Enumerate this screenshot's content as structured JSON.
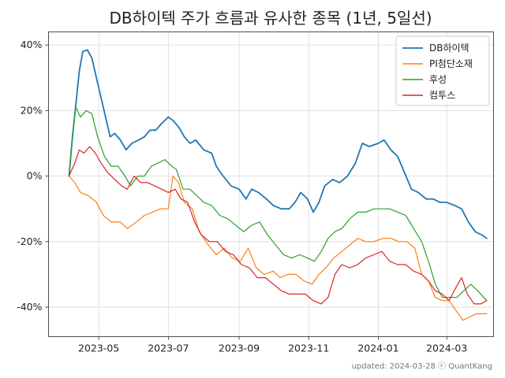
{
  "chart_data": {
    "type": "line",
    "title": "DB하이텍 주가 흐름과 유사한 종목 (1년, 5일선)",
    "xlabel": "",
    "ylabel": "",
    "x_ticks": [
      "2023-05",
      "2023-07",
      "2023-09",
      "2023-11",
      "2024-01",
      "2024-03"
    ],
    "x_range": [
      "2023-03-18",
      "2024-04-11"
    ],
    "y_ticks": [
      "40%",
      "20%",
      "0%",
      "-20%",
      "-40%"
    ],
    "ylim": [
      -49,
      44
    ],
    "grid": true,
    "legend_position": "top-right",
    "footer": "updated: 2024-03-28 ⓒ QuantKang",
    "series": [
      {
        "name": "DB하이텍",
        "color": "#1f77b4",
        "points": [
          [
            "2023-04-05",
            0
          ],
          [
            "2023-04-08",
            12
          ],
          [
            "2023-04-11",
            22
          ],
          [
            "2023-04-14",
            32
          ],
          [
            "2023-04-17",
            38
          ],
          [
            "2023-04-21",
            38.5
          ],
          [
            "2023-04-25",
            36
          ],
          [
            "2023-04-29",
            30
          ],
          [
            "2023-05-03",
            24
          ],
          [
            "2023-05-07",
            18
          ],
          [
            "2023-05-11",
            12
          ],
          [
            "2023-05-15",
            13
          ],
          [
            "2023-05-20",
            11
          ],
          [
            "2023-05-25",
            8
          ],
          [
            "2023-05-30",
            10
          ],
          [
            "2023-06-05",
            11
          ],
          [
            "2023-06-10",
            12
          ],
          [
            "2023-06-15",
            14
          ],
          [
            "2023-06-20",
            14
          ],
          [
            "2023-06-25",
            16
          ],
          [
            "2023-07-01",
            18
          ],
          [
            "2023-07-05",
            17
          ],
          [
            "2023-07-10",
            15
          ],
          [
            "2023-07-15",
            12
          ],
          [
            "2023-07-20",
            10
          ],
          [
            "2023-07-25",
            11
          ],
          [
            "2023-08-01",
            8
          ],
          [
            "2023-08-08",
            7
          ],
          [
            "2023-08-12",
            3
          ],
          [
            "2023-08-18",
            0
          ],
          [
            "2023-08-25",
            -3
          ],
          [
            "2023-09-01",
            -4
          ],
          [
            "2023-09-07",
            -7
          ],
          [
            "2023-09-12",
            -4
          ],
          [
            "2023-09-18",
            -5
          ],
          [
            "2023-09-25",
            -7
          ],
          [
            "2023-10-01",
            -9
          ],
          [
            "2023-10-08",
            -10
          ],
          [
            "2023-10-15",
            -10
          ],
          [
            "2023-10-20",
            -8
          ],
          [
            "2023-10-25",
            -5
          ],
          [
            "2023-10-31",
            -7
          ],
          [
            "2023-11-05",
            -11
          ],
          [
            "2023-11-10",
            -8
          ],
          [
            "2023-11-15",
            -3
          ],
          [
            "2023-11-22",
            -1
          ],
          [
            "2023-11-28",
            -2
          ],
          [
            "2023-12-05",
            0
          ],
          [
            "2023-12-12",
            4
          ],
          [
            "2023-12-18",
            10
          ],
          [
            "2023-12-24",
            9
          ],
          [
            "2024-01-01",
            10
          ],
          [
            "2024-01-06",
            11
          ],
          [
            "2024-01-12",
            8
          ],
          [
            "2024-01-18",
            6
          ],
          [
            "2024-01-24",
            1
          ],
          [
            "2024-01-30",
            -4
          ],
          [
            "2024-02-05",
            -5
          ],
          [
            "2024-02-12",
            -7
          ],
          [
            "2024-02-18",
            -7
          ],
          [
            "2024-02-24",
            -8
          ],
          [
            "2024-03-01",
            -8
          ],
          [
            "2024-03-08",
            -9
          ],
          [
            "2024-03-14",
            -10
          ],
          [
            "2024-03-20",
            -14
          ],
          [
            "2024-03-26",
            -17
          ],
          [
            "2024-04-01",
            -18
          ],
          [
            "2024-04-05",
            -19
          ]
        ]
      },
      {
        "name": "PI첨단소재",
        "color": "#ff7f0e",
        "points": [
          [
            "2023-04-05",
            0
          ],
          [
            "2023-04-10",
            -2
          ],
          [
            "2023-04-15",
            -5
          ],
          [
            "2023-04-22",
            -6
          ],
          [
            "2023-04-29",
            -8
          ],
          [
            "2023-05-05",
            -12
          ],
          [
            "2023-05-12",
            -14
          ],
          [
            "2023-05-20",
            -14
          ],
          [
            "2023-05-26",
            -16
          ],
          [
            "2023-06-03",
            -14
          ],
          [
            "2023-06-10",
            -12
          ],
          [
            "2023-06-17",
            -11
          ],
          [
            "2023-06-24",
            -10
          ],
          [
            "2023-07-01",
            -10
          ],
          [
            "2023-07-05",
            0
          ],
          [
            "2023-07-10",
            -2
          ],
          [
            "2023-07-15",
            -8
          ],
          [
            "2023-07-22",
            -10
          ],
          [
            "2023-07-28",
            -17
          ],
          [
            "2023-08-05",
            -21
          ],
          [
            "2023-08-12",
            -24
          ],
          [
            "2023-08-19",
            -22
          ],
          [
            "2023-08-26",
            -25
          ],
          [
            "2023-09-02",
            -26
          ],
          [
            "2023-09-09",
            -22
          ],
          [
            "2023-09-16",
            -28
          ],
          [
            "2023-09-23",
            -30
          ],
          [
            "2023-10-01",
            -29
          ],
          [
            "2023-10-07",
            -31
          ],
          [
            "2023-10-14",
            -30
          ],
          [
            "2023-10-21",
            -30
          ],
          [
            "2023-10-28",
            -32
          ],
          [
            "2023-11-04",
            -33
          ],
          [
            "2023-11-10",
            -30
          ],
          [
            "2023-11-16",
            -28
          ],
          [
            "2023-11-23",
            -25
          ],
          [
            "2023-11-30",
            -23
          ],
          [
            "2023-12-07",
            -21
          ],
          [
            "2023-12-14",
            -19
          ],
          [
            "2023-12-21",
            -20
          ],
          [
            "2023-12-28",
            -20
          ],
          [
            "2024-01-05",
            -19
          ],
          [
            "2024-01-12",
            -19
          ],
          [
            "2024-01-19",
            -20
          ],
          [
            "2024-01-26",
            -20
          ],
          [
            "2024-02-02",
            -22
          ],
          [
            "2024-02-08",
            -30
          ],
          [
            "2024-02-14",
            -32
          ],
          [
            "2024-02-20",
            -37
          ],
          [
            "2024-02-26",
            -38
          ],
          [
            "2024-03-03",
            -38
          ],
          [
            "2024-03-09",
            -41
          ],
          [
            "2024-03-15",
            -44
          ],
          [
            "2024-03-21",
            -43
          ],
          [
            "2024-03-27",
            -42
          ],
          [
            "2024-04-05",
            -42
          ]
        ]
      },
      {
        "name": "후성",
        "color": "#2ca02c",
        "points": [
          [
            "2023-04-05",
            0
          ],
          [
            "2023-04-08",
            13
          ],
          [
            "2023-04-11",
            21
          ],
          [
            "2023-04-15",
            18
          ],
          [
            "2023-04-20",
            20
          ],
          [
            "2023-04-25",
            19
          ],
          [
            "2023-04-30",
            12
          ],
          [
            "2023-05-06",
            6
          ],
          [
            "2023-05-12",
            3
          ],
          [
            "2023-05-18",
            3
          ],
          [
            "2023-05-24",
            0
          ],
          [
            "2023-05-29",
            -3
          ],
          [
            "2023-06-04",
            0
          ],
          [
            "2023-06-10",
            0
          ],
          [
            "2023-06-16",
            3
          ],
          [
            "2023-06-22",
            4
          ],
          [
            "2023-06-28",
            5
          ],
          [
            "2023-07-04",
            3
          ],
          [
            "2023-07-08",
            2
          ],
          [
            "2023-07-14",
            -4
          ],
          [
            "2023-07-20",
            -4
          ],
          [
            "2023-07-26",
            -6
          ],
          [
            "2023-08-01",
            -8
          ],
          [
            "2023-08-08",
            -9
          ],
          [
            "2023-08-15",
            -12
          ],
          [
            "2023-08-22",
            -13
          ],
          [
            "2023-08-29",
            -15
          ],
          [
            "2023-09-05",
            -17
          ],
          [
            "2023-09-12",
            -15
          ],
          [
            "2023-09-19",
            -14
          ],
          [
            "2023-09-26",
            -18
          ],
          [
            "2023-10-03",
            -21
          ],
          [
            "2023-10-10",
            -24
          ],
          [
            "2023-10-17",
            -25
          ],
          [
            "2023-10-24",
            -24
          ],
          [
            "2023-10-31",
            -25
          ],
          [
            "2023-11-06",
            -26
          ],
          [
            "2023-11-12",
            -23
          ],
          [
            "2023-11-18",
            -19
          ],
          [
            "2023-11-24",
            -17
          ],
          [
            "2023-11-30",
            -16
          ],
          [
            "2023-12-07",
            -13
          ],
          [
            "2023-12-14",
            -11
          ],
          [
            "2023-12-21",
            -11
          ],
          [
            "2023-12-28",
            -10
          ],
          [
            "2024-01-04",
            -10
          ],
          [
            "2024-01-11",
            -10
          ],
          [
            "2024-01-18",
            -11
          ],
          [
            "2024-01-25",
            -12
          ],
          [
            "2024-02-01",
            -16
          ],
          [
            "2024-02-08",
            -20
          ],
          [
            "2024-02-14",
            -26
          ],
          [
            "2024-02-20",
            -33
          ],
          [
            "2024-02-26",
            -37
          ],
          [
            "2024-03-03",
            -37
          ],
          [
            "2024-03-10",
            -37
          ],
          [
            "2024-03-16",
            -35
          ],
          [
            "2024-03-22",
            -33
          ],
          [
            "2024-03-28",
            -35
          ],
          [
            "2024-04-05",
            -38
          ]
        ]
      },
      {
        "name": "컴투스",
        "color": "#d62728",
        "points": [
          [
            "2023-04-05",
            0
          ],
          [
            "2023-04-10",
            4
          ],
          [
            "2023-04-14",
            8
          ],
          [
            "2023-04-18",
            7
          ],
          [
            "2023-04-23",
            9
          ],
          [
            "2023-04-28",
            7
          ],
          [
            "2023-05-03",
            4
          ],
          [
            "2023-05-09",
            1
          ],
          [
            "2023-05-15",
            -1
          ],
          [
            "2023-05-21",
            -3
          ],
          [
            "2023-05-26",
            -4
          ],
          [
            "2023-06-01",
            0
          ],
          [
            "2023-06-07",
            -2
          ],
          [
            "2023-06-13",
            -2
          ],
          [
            "2023-06-19",
            -3
          ],
          [
            "2023-06-25",
            -4
          ],
          [
            "2023-07-01",
            -5
          ],
          [
            "2023-07-07",
            -4
          ],
          [
            "2023-07-12",
            -7
          ],
          [
            "2023-07-18",
            -8
          ],
          [
            "2023-07-24",
            -14
          ],
          [
            "2023-07-30",
            -18
          ],
          [
            "2023-08-06",
            -20
          ],
          [
            "2023-08-13",
            -20
          ],
          [
            "2023-08-20",
            -23
          ],
          [
            "2023-08-27",
            -24
          ],
          [
            "2023-09-03",
            -27
          ],
          [
            "2023-09-10",
            -28
          ],
          [
            "2023-09-17",
            -31
          ],
          [
            "2023-09-24",
            -31
          ],
          [
            "2023-10-01",
            -33
          ],
          [
            "2023-10-08",
            -35
          ],
          [
            "2023-10-15",
            -36
          ],
          [
            "2023-10-22",
            -36
          ],
          [
            "2023-10-29",
            -36
          ],
          [
            "2023-11-05",
            -38
          ],
          [
            "2023-11-12",
            -39
          ],
          [
            "2023-11-18",
            -37
          ],
          [
            "2023-11-24",
            -30
          ],
          [
            "2023-11-30",
            -27
          ],
          [
            "2023-12-07",
            -28
          ],
          [
            "2023-12-14",
            -27
          ],
          [
            "2023-12-21",
            -25
          ],
          [
            "2023-12-28",
            -24
          ],
          [
            "2024-01-04",
            -23
          ],
          [
            "2024-01-11",
            -26
          ],
          [
            "2024-01-18",
            -27
          ],
          [
            "2024-01-25",
            -27
          ],
          [
            "2024-02-01",
            -29
          ],
          [
            "2024-02-08",
            -30
          ],
          [
            "2024-02-14",
            -32
          ],
          [
            "2024-02-20",
            -35
          ],
          [
            "2024-02-26",
            -36
          ],
          [
            "2024-03-03",
            -38
          ],
          [
            "2024-03-09",
            -34
          ],
          [
            "2024-03-14",
            -31
          ],
          [
            "2024-03-19",
            -36
          ],
          [
            "2024-03-25",
            -39
          ],
          [
            "2024-03-31",
            -39
          ],
          [
            "2024-04-05",
            -38
          ]
        ]
      }
    ]
  }
}
